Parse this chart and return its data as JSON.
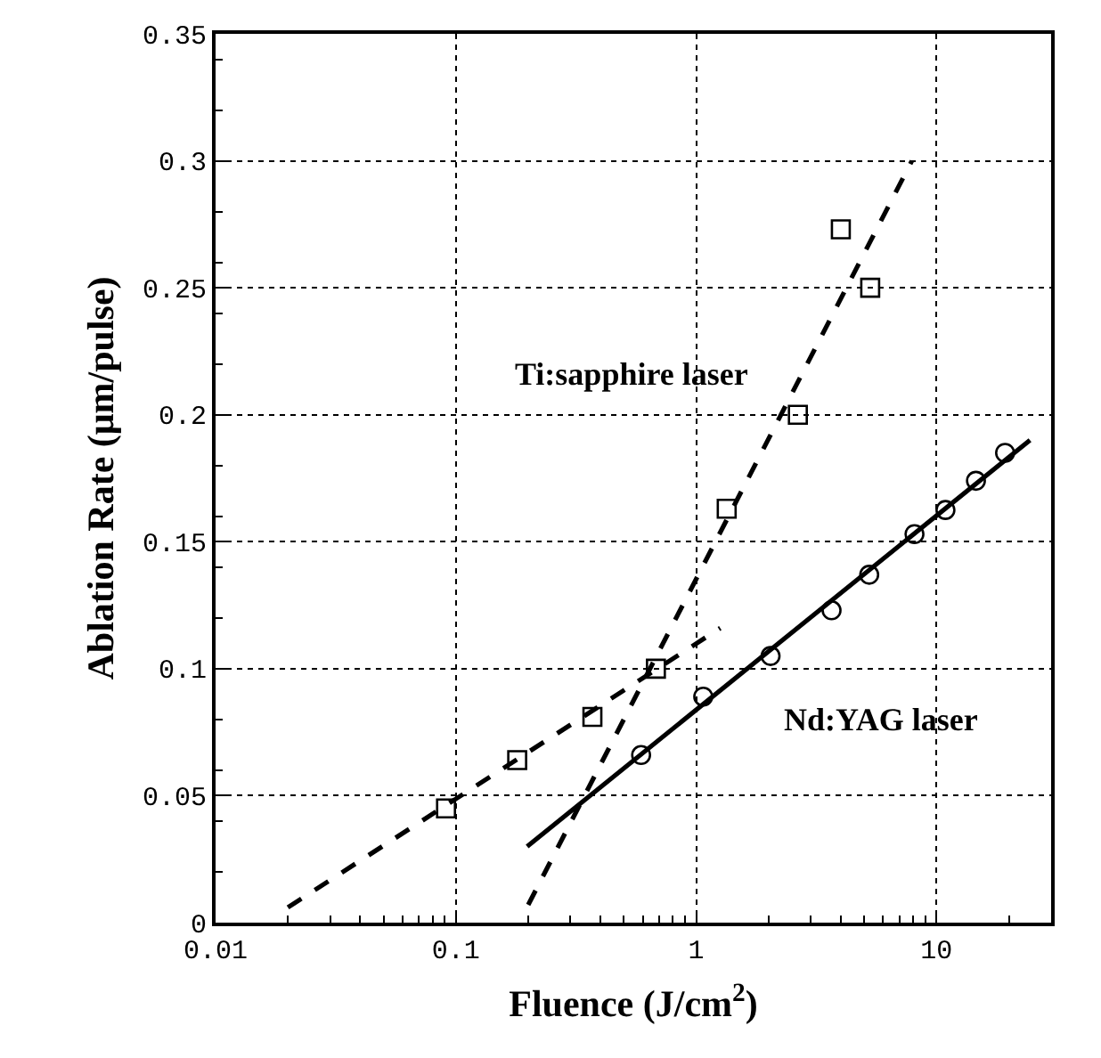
{
  "chart_data": {
    "type": "scatter",
    "xlabel": "Fluence (J/cm$^{2}$)",
    "ylabel": "Ablation Rate (μm/pulse)",
    "log": "x",
    "xlim": [
      0.01,
      30
    ],
    "xticks": [
      0.01,
      0.1,
      1,
      10
    ],
    "ylim": [
      0,
      0.35
    ],
    "yticks": [
      0,
      0.05,
      0.1,
      0.15,
      0.2,
      0.25,
      0.3,
      0.35
    ],
    "grid": true,
    "series": [
      {
        "marker": "square",
        "color": "#000000",
        "x": [
          0.091,
          0.18,
          0.37,
          0.68,
          1.34,
          2.65,
          4.0,
          5.3
        ],
        "values": [
          0.045,
          0.064,
          0.081,
          0.1,
          0.163,
          0.2,
          0.273,
          0.25
        ]
      },
      {
        "marker": "circle",
        "color": "#000000",
        "x": [
          0.59,
          1.07,
          2.04,
          3.66,
          5.25,
          8.1,
          10.9,
          14.6,
          19.3
        ],
        "values": [
          0.066,
          0.089,
          0.105,
          0.123,
          0.137,
          0.153,
          0.1625,
          0.174,
          0.185
        ]
      },
      {
        "type": "line",
        "line_style": "dashed",
        "color": "#000000",
        "x": [
          0.02,
          1.26
        ],
        "values": [
          0.006,
          0.116
        ]
      },
      {
        "type": "line",
        "line_style": "dashed",
        "color": "#000000",
        "x": [
          0.2,
          7.9
        ],
        "values": [
          0.007,
          0.3
        ]
      },
      {
        "type": "line",
        "line_style": "solid",
        "color": "#000000",
        "x": [
          0.198,
          24.5
        ],
        "values": [
          0.03,
          0.19
        ]
      }
    ],
    "annotations": [
      "Ti:sapphire laser",
      "Nd:YAG laser"
    ]
  }
}
